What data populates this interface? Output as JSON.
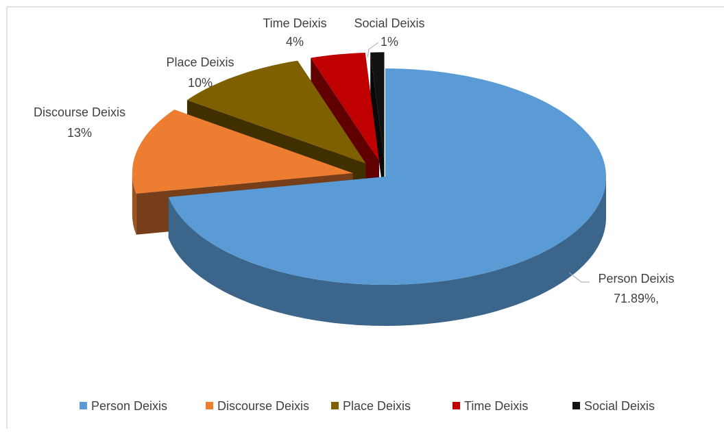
{
  "chart_data": {
    "type": "pie3d",
    "categories": [
      "Person Deixis",
      "Discourse Deixis",
      "Place Deixis",
      "Time Deixis",
      "Social Deixis"
    ],
    "values": [
      71.89,
      13,
      10,
      4,
      1
    ],
    "value_labels": [
      "71.89%,",
      "13%",
      "10%",
      "4%",
      "1%"
    ],
    "colors": [
      "#5b9bd5",
      "#ed7d31",
      "#7f6000",
      "#c00000",
      "#111111"
    ],
    "legend": "bottom"
  }
}
